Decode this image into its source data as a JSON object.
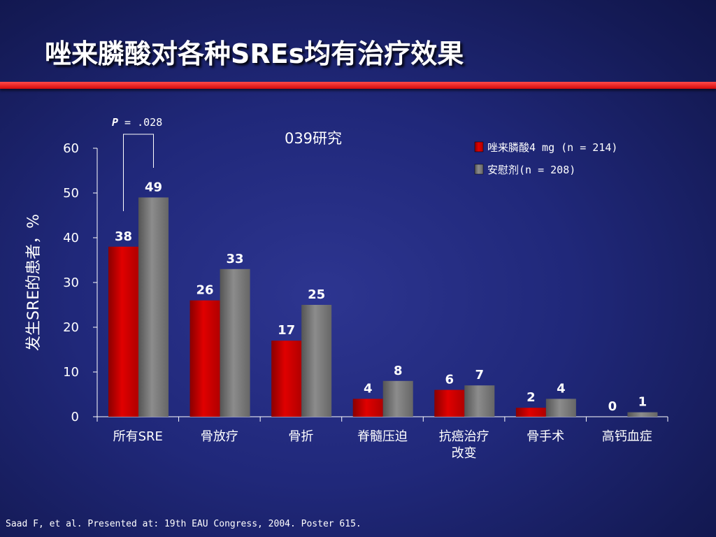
{
  "slide": {
    "title": "唑来膦酸对各种SREs均有治疗效果",
    "footnote": "Saad F, et al. Presented at: 19th EAU Congress, 2004. Poster 615."
  },
  "colors": {
    "zoledronic": "#e00000",
    "placebo": "#7a7a7a"
  },
  "chart_data": {
    "type": "bar",
    "subtitle": "039研究",
    "ylabel": "发生SRE的患者，%",
    "ylim": [
      0,
      60
    ],
    "yticks": [
      0,
      10,
      20,
      30,
      40,
      50,
      60
    ],
    "categories": [
      [
        "所有SRE"
      ],
      [
        "骨放疗"
      ],
      [
        "骨折"
      ],
      [
        "脊髓压迫"
      ],
      [
        "抗癌治疗",
        "改变"
      ],
      [
        "骨手术"
      ],
      [
        "高钙血症"
      ]
    ],
    "series": [
      {
        "name": "唑来膦酸4 mg (n = 214)",
        "values": [
          38,
          26,
          17,
          4,
          6,
          2,
          0
        ]
      },
      {
        "name": "安慰剂(n = 208)",
        "values": [
          49,
          33,
          25,
          8,
          7,
          4,
          1
        ]
      }
    ],
    "legend_position": "top-right",
    "annotation": {
      "p_label": "P",
      "p_value": " = .028",
      "category_index": 0
    },
    "grid": false
  }
}
